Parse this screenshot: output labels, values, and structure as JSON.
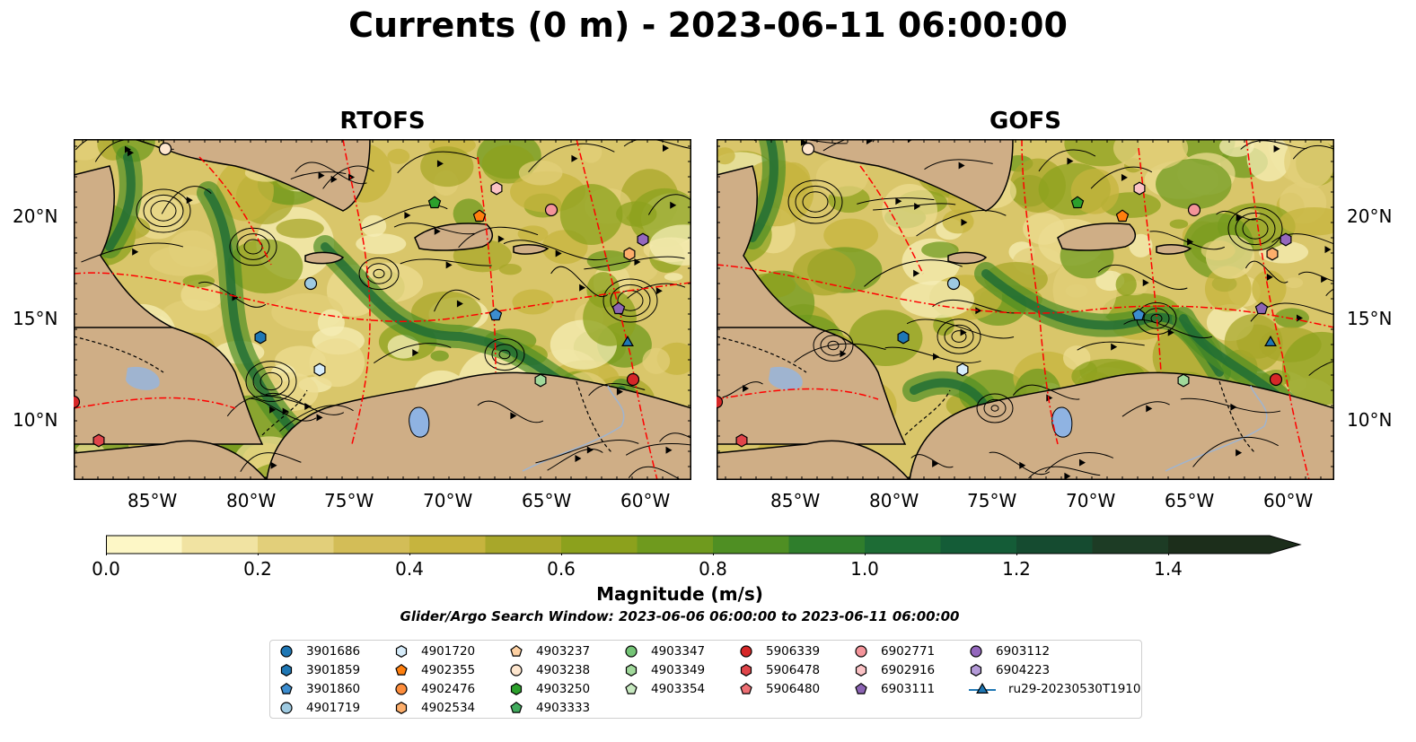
{
  "title": "Currents (0 m) - 2023-06-11 06:00:00",
  "panels": [
    {
      "title": "RTOFS",
      "side": "left"
    },
    {
      "title": "GOFS",
      "side": "right"
    }
  ],
  "axes": {
    "lon_ticks": [
      "85°W",
      "80°W",
      "75°W",
      "70°W",
      "65°W",
      "60°W"
    ],
    "lat_ticks": [
      "20°N",
      "15°N",
      "10°N"
    ]
  },
  "colorbar": {
    "label": "Magnitude (m/s)",
    "ticks": [
      "0.0",
      "0.2",
      "0.4",
      "0.6",
      "0.8",
      "1.0",
      "1.2",
      "1.4"
    ],
    "range": [
      0,
      1.5
    ],
    "extend": "max",
    "colors": [
      "#fdf7c6",
      "#f1e3a2",
      "#e2cf7a",
      "#d3bd57",
      "#c6b43e",
      "#a8a72a",
      "#8ca11d",
      "#6f9a1e",
      "#4f8f23",
      "#2f7e2c",
      "#1d6c35",
      "#145c37",
      "#154b30",
      "#1d3c25",
      "#1c2e1b"
    ]
  },
  "search_window": "Glider/Argo Search Window: 2023-06-06 06:00:00 to 2023-06-11 06:00:00",
  "legend": [
    {
      "label": "3901686",
      "color": "#1f77b4",
      "marker": "circle"
    },
    {
      "label": "3901859",
      "color": "#1f77b4",
      "marker": "hexagon"
    },
    {
      "label": "3901860",
      "color": "#3c8dcf",
      "marker": "pentagon"
    },
    {
      "label": "4901719",
      "color": "#9ecae1",
      "marker": "circle"
    },
    {
      "label": "4901720",
      "color": "#d6ecfa",
      "marker": "hexagon"
    },
    {
      "label": "4902355",
      "color": "#ff7f0e",
      "marker": "pentagon"
    },
    {
      "label": "4902476",
      "color": "#fd8d3c",
      "marker": "circle"
    },
    {
      "label": "4902534",
      "color": "#fdae6b",
      "marker": "hexagon"
    },
    {
      "label": "4903237",
      "color": "#fdd0a2",
      "marker": "pentagon"
    },
    {
      "label": "4903238",
      "color": "#fee6ce",
      "marker": "circle"
    },
    {
      "label": "4903250",
      "color": "#2ca02c",
      "marker": "hexagon"
    },
    {
      "label": "4903333",
      "color": "#41ab5d",
      "marker": "pentagon"
    },
    {
      "label": "4903347",
      "color": "#74c476",
      "marker": "circle"
    },
    {
      "label": "4903349",
      "color": "#a1d99b",
      "marker": "hexagon"
    },
    {
      "label": "4903354",
      "color": "#c7e9c0",
      "marker": "pentagon"
    },
    {
      "label": "5906339",
      "color": "#d62728",
      "marker": "circle"
    },
    {
      "label": "5906478",
      "color": "#e0454a",
      "marker": "hexagon"
    },
    {
      "label": "5906480",
      "color": "#ee6f74",
      "marker": "pentagon"
    },
    {
      "label": "6902771",
      "color": "#f4949a",
      "marker": "circle"
    },
    {
      "label": "6902916",
      "color": "#fbc3c6",
      "marker": "hexagon"
    },
    {
      "label": "6903111",
      "color": "#8c64b4",
      "marker": "pentagon"
    },
    {
      "label": "6903112",
      "color": "#9467bd",
      "marker": "circle"
    },
    {
      "label": "6904223",
      "color": "#b49ad8",
      "marker": "hexagon"
    },
    {
      "label": "ru29-20230530T1910",
      "color": "#1f77b4",
      "marker": "triangle-line"
    }
  ]
}
